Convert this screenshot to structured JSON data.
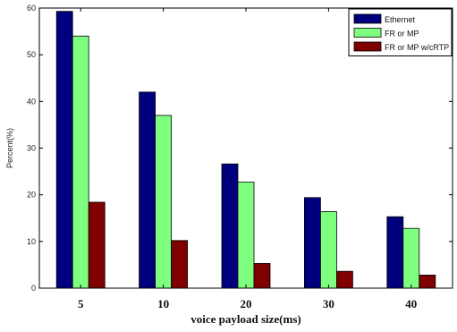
{
  "chart_data": {
    "type": "bar",
    "categories": [
      "5",
      "10",
      "20",
      "30",
      "40"
    ],
    "series": [
      {
        "name": "Ethernet",
        "color": "#00007f",
        "values": [
          59.3,
          42.0,
          26.6,
          19.4,
          15.3
        ]
      },
      {
        "name": "FR or MP",
        "color": "#7fff7f",
        "values": [
          54.0,
          37.0,
          22.7,
          16.4,
          12.8
        ]
      },
      {
        "name": "FR or MP w/cRTP",
        "color": "#7f0000",
        "values": [
          18.4,
          10.2,
          5.3,
          3.6,
          2.8
        ]
      }
    ],
    "title": "",
    "xlabel": "voice payload size(ms)",
    "ylabel": "Percent(%)",
    "ylim": [
      0,
      60
    ],
    "yticks": [
      0,
      10,
      20,
      30,
      40,
      50,
      60
    ],
    "grid": false,
    "legend_position": "top-right"
  }
}
